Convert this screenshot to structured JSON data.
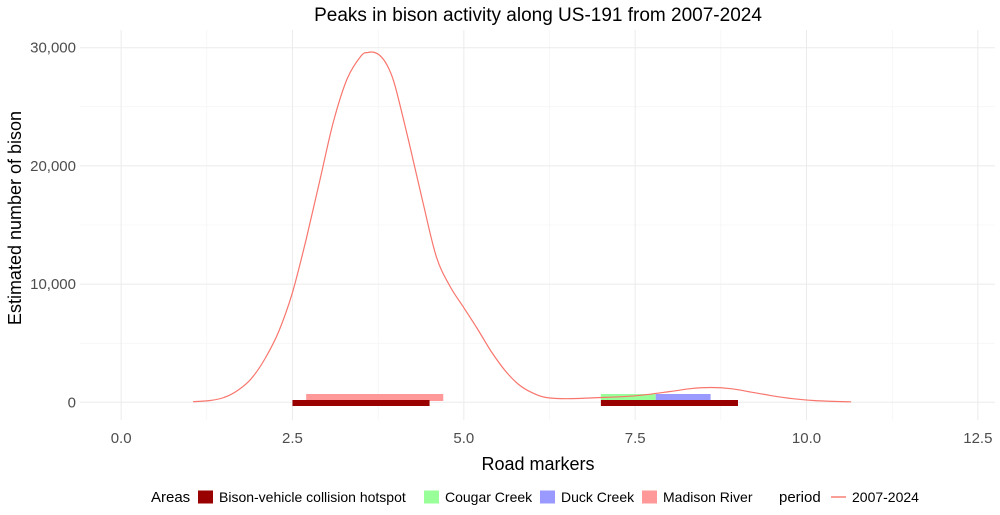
{
  "chart_data": {
    "type": "line",
    "title": "Peaks in bison activity along US-191 from 2007-2024",
    "xlabel": "Road markers",
    "ylabel": "Estimated number of bison",
    "xlim": [
      -0.6,
      12.75
    ],
    "ylim": [
      -1500,
      31500
    ],
    "x_ticks": [
      0.0,
      2.5,
      5.0,
      7.5,
      10.0,
      12.5
    ],
    "x_tick_labels": [
      "0.0",
      "2.5",
      "5.0",
      "7.5",
      "10.0",
      "12.5"
    ],
    "y_ticks": [
      0,
      10000,
      20000,
      30000
    ],
    "y_tick_labels": [
      "0",
      "10,000",
      "20,000",
      "30,000"
    ],
    "grid": true,
    "legend_position": "bottom",
    "series": [
      {
        "name": "2007-2024",
        "color": "#F8766D",
        "x": [
          1.05,
          1.3,
          1.5,
          1.7,
          1.9,
          2.1,
          2.3,
          2.5,
          2.7,
          2.9,
          3.1,
          3.3,
          3.5,
          3.6,
          3.7,
          3.8,
          3.9,
          4.0,
          4.2,
          4.4,
          4.6,
          4.8,
          5.0,
          5.2,
          5.4,
          5.6,
          5.8,
          6.0,
          6.2,
          6.5,
          7.0,
          7.5,
          8.0,
          8.3,
          8.6,
          8.9,
          9.2,
          9.5,
          9.8,
          10.1,
          10.4,
          10.65
        ],
        "y": [
          50,
          150,
          400,
          1000,
          2000,
          3700,
          6000,
          9300,
          13800,
          18800,
          23800,
          27400,
          29300,
          29600,
          29600,
          29200,
          28300,
          26700,
          22000,
          17000,
          12300,
          9800,
          8000,
          6200,
          4300,
          2700,
          1500,
          800,
          400,
          300,
          400,
          550,
          900,
          1150,
          1250,
          1150,
          850,
          550,
          300,
          150,
          70,
          40
        ]
      }
    ],
    "areas": [
      {
        "name": "Bison-vehicle collision hotspot",
        "color": "#990000",
        "segments": [
          [
            2.5,
            4.5
          ],
          [
            7.0,
            9.0
          ]
        ]
      },
      {
        "name": "Cougar Creek",
        "color": "#99FF99",
        "segments": [
          [
            7.0,
            7.8
          ]
        ]
      },
      {
        "name": "Duck Creek",
        "color": "#9999FF",
        "segments": [
          [
            7.8,
            8.6
          ]
        ]
      },
      {
        "name": "Madison River",
        "color": "#FF9999",
        "segments": [
          [
            2.7,
            4.7
          ]
        ]
      }
    ],
    "legend": {
      "areas_title": "Areas",
      "period_title": "period"
    }
  }
}
